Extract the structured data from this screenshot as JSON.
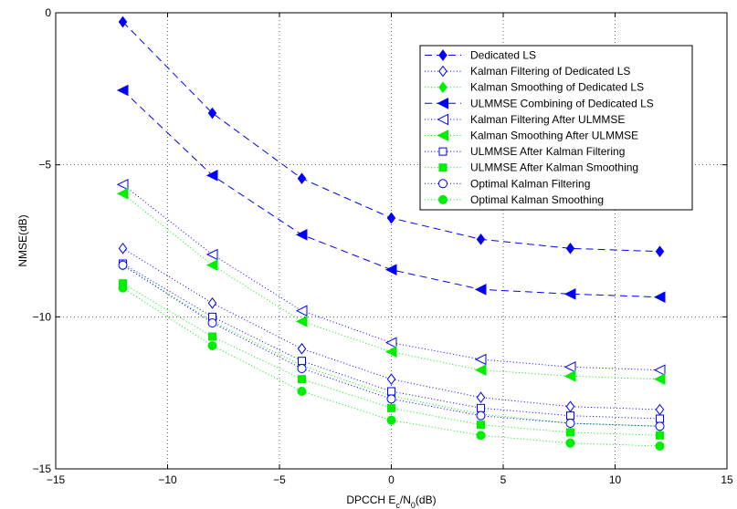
{
  "chart_data": {
    "type": "line",
    "xlabel_parts": {
      "main": "DPCCH E",
      "sub1": "c",
      "mid": "/N",
      "sub2": "0",
      "tail": "(dB)"
    },
    "ylabel": "NMSE(dB)",
    "xlim": [
      -15,
      15
    ],
    "ylim": [
      -15,
      0
    ],
    "xticks": [
      -15,
      -10,
      -5,
      0,
      5,
      10,
      15
    ],
    "yticks": [
      -15,
      -10,
      -5,
      0
    ],
    "xtick_labels": [
      "−15",
      "−10",
      "−5",
      "0",
      "5",
      "10",
      "15"
    ],
    "ytick_labels": [
      "−15",
      "−10",
      "−5",
      "0"
    ],
    "grid": true,
    "legend_position": "top-right",
    "x": [
      -12,
      -8,
      -4,
      0,
      4,
      8,
      12
    ],
    "series": [
      {
        "name": "Dedicated LS",
        "values": [
          -0.3,
          -3.3,
          -5.45,
          -6.75,
          -7.45,
          -7.75,
          -7.85
        ],
        "color": "#0000ff",
        "line": "dashed",
        "marker": "diamond",
        "filled": true
      },
      {
        "name": "Kalman Filtering of Dedicated LS",
        "values": [
          -7.75,
          -9.55,
          -11.05,
          -12.05,
          -12.65,
          -12.95,
          -13.05
        ],
        "color": "#0000ff",
        "line": "dotted",
        "marker": "diamond",
        "filled": false
      },
      {
        "name": "Kalman Smoothing of Dedicated LS",
        "values": [
          -8.3,
          -10.15,
          -11.6,
          -12.6,
          -13.2,
          -13.5,
          -13.6
        ],
        "color": "#00ee00",
        "line": "dotted",
        "marker": "diamond",
        "filled": true
      },
      {
        "name": "ULMMSE Combining of Dedicated LS",
        "values": [
          -2.55,
          -5.35,
          -7.3,
          -8.45,
          -9.1,
          -9.25,
          -9.35
        ],
        "color": "#0000ff",
        "line": "dashed",
        "marker": "triangle-left",
        "filled": true
      },
      {
        "name": "Kalman Filtering After ULMMSE",
        "values": [
          -5.65,
          -7.95,
          -9.8,
          -10.85,
          -11.4,
          -11.65,
          -11.75
        ],
        "color": "#0000ff",
        "line": "dotted",
        "marker": "triangle-left",
        "filled": false
      },
      {
        "name": "Kalman Smoothing After ULMMSE",
        "values": [
          -5.95,
          -8.3,
          -10.15,
          -11.15,
          -11.75,
          -11.95,
          -12.05
        ],
        "color": "#00ee00",
        "line": "dotted",
        "marker": "triangle-left",
        "filled": true
      },
      {
        "name": "ULMMSE After Kalman Filtering",
        "values": [
          -8.25,
          -10.0,
          -11.45,
          -12.45,
          -13.0,
          -13.25,
          -13.35
        ],
        "color": "#0000ff",
        "line": "dotted",
        "marker": "square",
        "filled": false
      },
      {
        "name": "ULMMSE After Kalman Smoothing",
        "values": [
          -8.9,
          -10.65,
          -12.05,
          -13.0,
          -13.55,
          -13.8,
          -13.9
        ],
        "color": "#00ee00",
        "line": "dotted",
        "marker": "square",
        "filled": true
      },
      {
        "name": "Optimal Kalman Filtering",
        "values": [
          -8.3,
          -10.2,
          -11.7,
          -12.7,
          -13.25,
          -13.5,
          -13.6
        ],
        "color": "#0000ff",
        "line": "dotted",
        "marker": "circle",
        "filled": false
      },
      {
        "name": "Optimal Kalman Smoothing",
        "values": [
          -9.05,
          -10.95,
          -12.45,
          -13.4,
          -13.9,
          -14.15,
          -14.25
        ],
        "color": "#00ee00",
        "line": "dotted",
        "marker": "circle",
        "filled": true
      }
    ]
  }
}
